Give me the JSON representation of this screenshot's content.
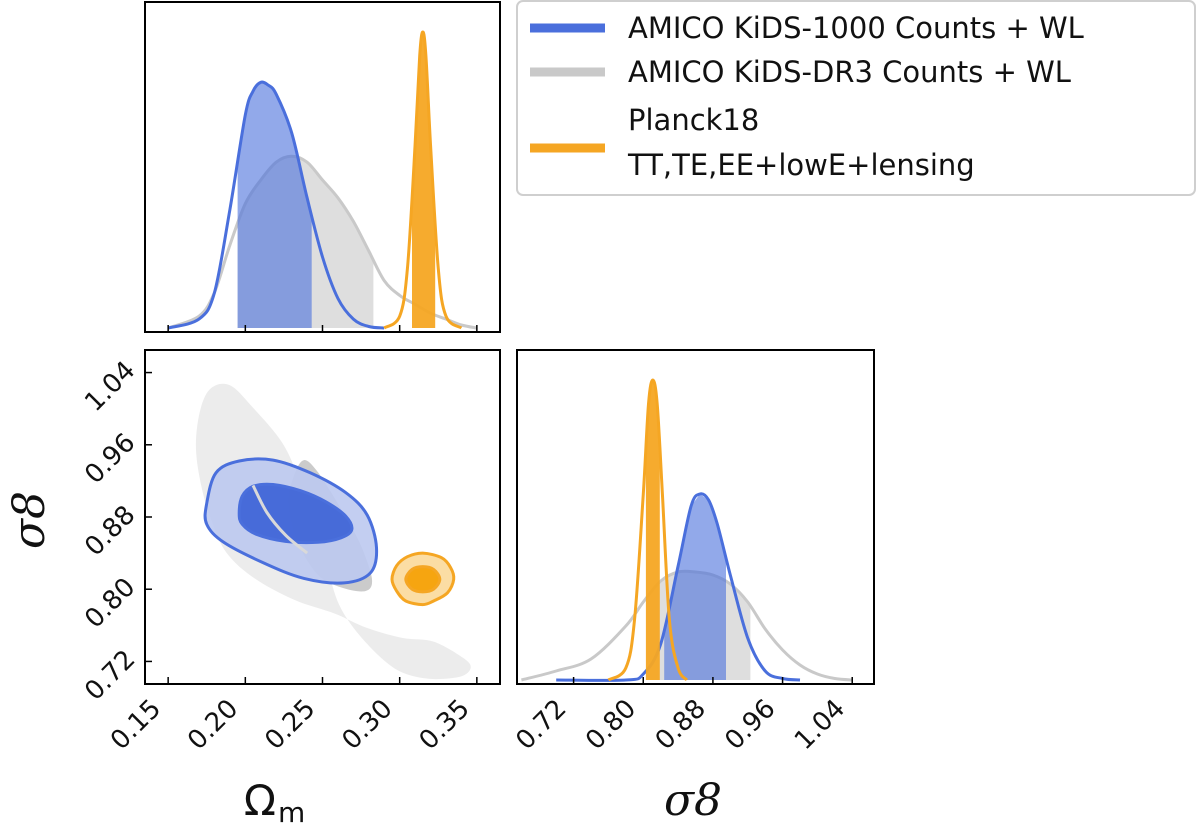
{
  "chart_data": {
    "type": "corner-plot",
    "parameters": [
      "Ωm",
      "σ8"
    ],
    "axes": {
      "omega_m": {
        "label_main": "Ω",
        "label_sub": "m",
        "range": [
          0.135,
          0.365
        ],
        "ticks": [
          0.15,
          0.2,
          0.25,
          0.3,
          0.35
        ],
        "tick_labels": [
          "0.15",
          "0.20",
          "0.25",
          "0.30",
          "0.35"
        ]
      },
      "sigma_8_y": {
        "label": "σ8",
        "range": [
          0.695,
          1.065
        ],
        "ticks": [
          0.72,
          0.8,
          0.88,
          0.96,
          1.04
        ],
        "tick_labels": [
          "0.72",
          "0.80",
          "0.88",
          "0.96",
          "1.04"
        ]
      },
      "sigma_8_x": {
        "label": "σ8",
        "range": [
          0.655,
          1.065
        ],
        "ticks": [
          0.72,
          0.8,
          0.88,
          0.96,
          1.04
        ],
        "tick_labels": [
          "0.72",
          "0.80",
          "0.88",
          "0.96",
          "1.04"
        ]
      }
    },
    "legend": {
      "placement": "top-right",
      "entries": [
        {
          "series": "kids1000",
          "line1": "AMICO KiDS-1000 Counts + WL",
          "line2": ""
        },
        {
          "series": "kidsdr3",
          "line1": "AMICO KiDS-DR3 Counts + WL",
          "line2": ""
        },
        {
          "series": "planck18",
          "line1": "Planck18",
          "line2": "TT,TE,EE+lowE+lensing"
        }
      ]
    },
    "series": [
      {
        "id": "kids1000",
        "name": "AMICO KiDS-1000 Counts + WL",
        "color": "#4a6fdc",
        "fill_inner": "#3a61d6",
        "fill_outer": "#bcc9f0",
        "omega_m_pdf": {
          "x": [
            0.15,
            0.17,
            0.18,
            0.19,
            0.2,
            0.205,
            0.21,
            0.215,
            0.22,
            0.23,
            0.24,
            0.25,
            0.26,
            0.27,
            0.28,
            0.29
          ],
          "y": [
            0.0,
            0.03,
            0.12,
            0.4,
            0.72,
            0.8,
            0.83,
            0.82,
            0.79,
            0.66,
            0.44,
            0.24,
            0.1,
            0.03,
            0.005,
            0.0
          ],
          "credible_interval": [
            0.195,
            0.243
          ]
        },
        "sigma_8_pdf": {
          "x": [
            0.7,
            0.78,
            0.8,
            0.82,
            0.84,
            0.855,
            0.865,
            0.875,
            0.885,
            0.9,
            0.92,
            0.94,
            0.96,
            0.98
          ],
          "y": [
            0.0,
            0.0,
            0.02,
            0.12,
            0.38,
            0.58,
            0.62,
            0.6,
            0.52,
            0.35,
            0.14,
            0.03,
            0.005,
            0.0
          ],
          "credible_interval": [
            0.824,
            0.895
          ]
        },
        "contour_68": [
          [
            0.196,
            0.884
          ],
          [
            0.198,
            0.903
          ],
          [
            0.205,
            0.914
          ],
          [
            0.218,
            0.916
          ],
          [
            0.236,
            0.909
          ],
          [
            0.252,
            0.897
          ],
          [
            0.265,
            0.881
          ],
          [
            0.269,
            0.866
          ],
          [
            0.262,
            0.857
          ],
          [
            0.247,
            0.852
          ],
          [
            0.226,
            0.853
          ],
          [
            0.207,
            0.861
          ],
          [
            0.198,
            0.872
          ]
        ],
        "contour_95": [
          [
            0.175,
            0.895
          ],
          [
            0.181,
            0.929
          ],
          [
            0.196,
            0.942
          ],
          [
            0.218,
            0.943
          ],
          [
            0.242,
            0.929
          ],
          [
            0.265,
            0.907
          ],
          [
            0.279,
            0.882
          ],
          [
            0.285,
            0.846
          ],
          [
            0.281,
            0.818
          ],
          [
            0.264,
            0.807
          ],
          [
            0.238,
            0.812
          ],
          [
            0.212,
            0.829
          ],
          [
            0.186,
            0.852
          ],
          [
            0.175,
            0.872
          ]
        ]
      },
      {
        "id": "kidsdr3",
        "name": "AMICO KiDS-DR3 Counts + WL",
        "color": "#c9c9c9",
        "fill_inner": "#c8c8c8",
        "fill_outer": "#ebebeb",
        "omega_m_pdf": {
          "x": [
            0.15,
            0.17,
            0.18,
            0.19,
            0.2,
            0.21,
            0.22,
            0.23,
            0.24,
            0.25,
            0.26,
            0.27,
            0.28,
            0.29,
            0.3,
            0.31,
            0.32,
            0.33,
            0.34,
            0.35
          ],
          "y": [
            0.0,
            0.04,
            0.12,
            0.28,
            0.42,
            0.5,
            0.56,
            0.58,
            0.56,
            0.5,
            0.44,
            0.36,
            0.26,
            0.16,
            0.11,
            0.08,
            0.05,
            0.03,
            0.01,
            0.0
          ],
          "credible_interval": [
            0.195,
            0.283
          ]
        },
        "sigma_8_pdf": {
          "x": [
            0.66,
            0.7,
            0.74,
            0.78,
            0.8,
            0.82,
            0.84,
            0.86,
            0.88,
            0.9,
            0.92,
            0.94,
            0.96,
            0.98,
            1.0,
            1.02,
            1.04
          ],
          "y": [
            0.0,
            0.03,
            0.07,
            0.18,
            0.26,
            0.33,
            0.36,
            0.36,
            0.35,
            0.32,
            0.26,
            0.17,
            0.1,
            0.05,
            0.02,
            0.005,
            0.0
          ],
          "credible_interval": [
            0.804,
            0.923
          ]
        },
        "contour_68": [
          [
            0.238,
            0.943
          ],
          [
            0.246,
            0.932
          ],
          [
            0.256,
            0.906
          ],
          [
            0.266,
            0.877
          ],
          [
            0.275,
            0.848
          ],
          [
            0.282,
            0.812
          ],
          [
            0.278,
            0.798
          ],
          [
            0.262,
            0.802
          ],
          [
            0.247,
            0.816
          ],
          [
            0.234,
            0.852
          ],
          [
            0.228,
            0.896
          ],
          [
            0.232,
            0.928
          ]
        ],
        "contour_95": [
          [
            0.178,
            1.023
          ],
          [
            0.171,
            1.0
          ],
          [
            0.168,
            0.96
          ],
          [
            0.171,
            0.918
          ],
          [
            0.178,
            0.876
          ],
          [
            0.188,
            0.84
          ],
          [
            0.206,
            0.812
          ],
          [
            0.232,
            0.788
          ],
          [
            0.258,
            0.773
          ],
          [
            0.279,
            0.757
          ],
          [
            0.302,
            0.746
          ],
          [
            0.322,
            0.742
          ],
          [
            0.341,
            0.724
          ],
          [
            0.346,
            0.713
          ],
          [
            0.339,
            0.703
          ],
          [
            0.318,
            0.701
          ],
          [
            0.297,
            0.712
          ],
          [
            0.276,
            0.745
          ],
          [
            0.261,
            0.782
          ],
          [
            0.253,
            0.826
          ],
          [
            0.246,
            0.87
          ],
          [
            0.236,
            0.917
          ],
          [
            0.224,
            0.962
          ],
          [
            0.204,
            1.003
          ],
          [
            0.19,
            1.026
          ]
        ]
      },
      {
        "id": "planck18",
        "name": "Planck18 TT,TE,EE+lowE+lensing",
        "color": "#f5a623",
        "fill_inner": "#f59f00",
        "fill_outer": "#fbd99a",
        "omega_m_pdf": {
          "x": [
            0.29,
            0.3,
            0.305,
            0.31,
            0.313,
            0.315,
            0.317,
            0.32,
            0.325,
            0.33,
            0.34
          ],
          "y": [
            0.0,
            0.04,
            0.2,
            0.62,
            0.92,
            1.0,
            0.92,
            0.62,
            0.2,
            0.04,
            0.0
          ],
          "credible_interval": [
            0.308,
            0.323
          ]
        },
        "sigma_8_pdf": {
          "x": [
            0.76,
            0.78,
            0.79,
            0.8,
            0.806,
            0.811,
            0.816,
            0.822,
            0.83,
            0.84,
            0.85
          ],
          "y": [
            0.0,
            0.04,
            0.2,
            0.62,
            0.92,
            1.0,
            0.92,
            0.62,
            0.2,
            0.04,
            0.0
          ],
          "credible_interval": [
            0.803,
            0.819
          ]
        },
        "contour_68": [
          [
            0.315,
            0.825
          ],
          [
            0.322,
            0.822
          ],
          [
            0.326,
            0.811
          ],
          [
            0.322,
            0.8
          ],
          [
            0.315,
            0.797
          ],
          [
            0.308,
            0.8
          ],
          [
            0.304,
            0.811
          ],
          [
            0.308,
            0.822
          ]
        ],
        "contour_95": [
          [
            0.315,
            0.84
          ],
          [
            0.327,
            0.835
          ],
          [
            0.333,
            0.824
          ],
          [
            0.335,
            0.811
          ],
          [
            0.331,
            0.796
          ],
          [
            0.322,
            0.787
          ],
          [
            0.315,
            0.783
          ],
          [
            0.304,
            0.787
          ],
          [
            0.298,
            0.798
          ],
          [
            0.295,
            0.811
          ],
          [
            0.298,
            0.826
          ],
          [
            0.305,
            0.836
          ]
        ]
      }
    ]
  }
}
